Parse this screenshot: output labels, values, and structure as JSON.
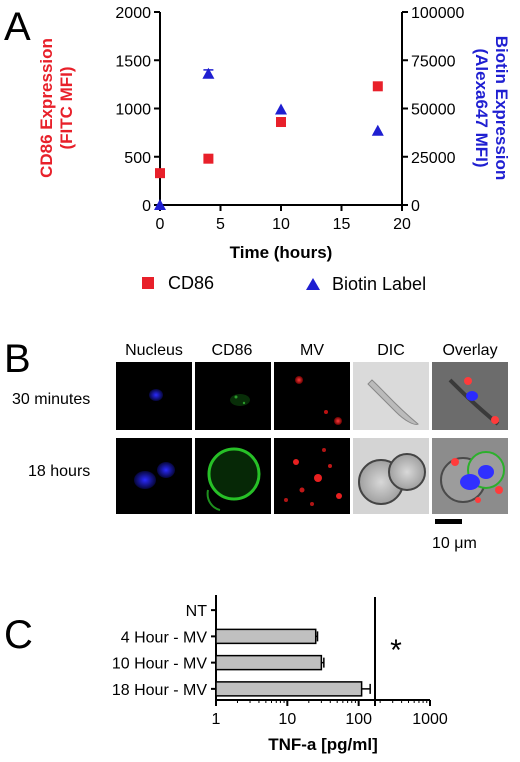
{
  "panel_letters": {
    "a": "A",
    "b": "B",
    "c": "C"
  },
  "colors": {
    "cd86": "#e8202a",
    "biotin": "#1f1fd1",
    "bar": "#c0c0c0",
    "axis": "#000000"
  },
  "chart_data": [
    {
      "type": "scatter",
      "panel": "A",
      "xlabel": "Time (hours)",
      "ylabel_left": "CD86 Expression (FITC MFI)",
      "ylabel_right": "Biotin Expression (Alexa647 MFI)",
      "xlim": [
        0,
        20
      ],
      "ylim_left": [
        0,
        2000
      ],
      "ylim_right": [
        0,
        100000
      ],
      "x_ticks": [
        "0",
        "5",
        "10",
        "15",
        "20"
      ],
      "y_ticks_left": [
        "0",
        "500",
        "1000",
        "1500",
        "2000"
      ],
      "y_ticks_right": [
        "0",
        "25000",
        "50000",
        "75000",
        "100000"
      ],
      "legend": [
        "CD86",
        "Biotin Label"
      ],
      "series": [
        {
          "name": "CD86",
          "axis": "left",
          "marker": "square",
          "color": "#e8202a",
          "x": [
            0,
            4,
            10,
            18
          ],
          "y": [
            330,
            480,
            860,
            1230
          ]
        },
        {
          "name": "Biotin Label",
          "axis": "right",
          "marker": "triangle",
          "color": "#1f1fd1",
          "x": [
            0,
            4,
            10,
            18
          ],
          "y": [
            0,
            68000,
            49500,
            38500
          ],
          "error": [
            0,
            2000,
            0,
            0
          ]
        }
      ]
    },
    {
      "type": "bar",
      "panel": "C",
      "orientation": "horizontal",
      "xscale": "log",
      "xlabel": "TNF-a [pg/ml]",
      "xlim": [
        1,
        1000
      ],
      "x_ticks": [
        "1",
        "10",
        "100",
        "1000"
      ],
      "categories": [
        "NT",
        "4 Hour - MV",
        "10 Hour - MV",
        "18 Hour - MV"
      ],
      "values": [
        null,
        25,
        30,
        110
      ],
      "errors": [
        null,
        1.5,
        2.5,
        35
      ],
      "annotation": "*"
    }
  ],
  "microscopy": {
    "columns": [
      "Nucleus",
      "CD86",
      "MV",
      "DIC",
      "Overlay"
    ],
    "rows": [
      "30 minutes",
      "18 hours"
    ],
    "scale_bar_label": "10 μm"
  }
}
